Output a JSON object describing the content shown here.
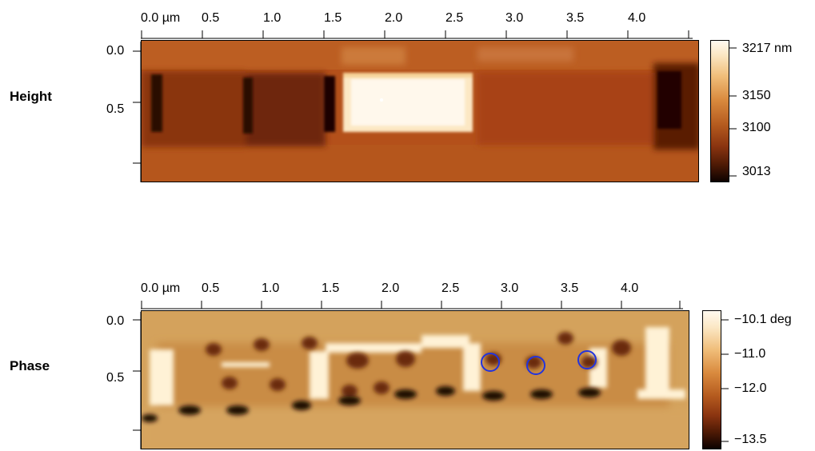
{
  "panels": [
    {
      "label": "Height",
      "x_ticks": [
        "0.0 µm",
        "0.5",
        "1.0",
        "1.5",
        "2.0",
        "2.5",
        "3.0",
        "3.5",
        "4.0"
      ],
      "y_ticks": [
        "0.0",
        "0.5"
      ],
      "colorbar": [
        "3217 nm",
        "3150",
        "3100",
        "3013"
      ]
    },
    {
      "label": "Phase",
      "x_ticks": [
        "0.0 µm",
        "0.5",
        "1.0",
        "1.5",
        "2.0",
        "2.5",
        "3.0",
        "3.5",
        "4.0"
      ],
      "y_ticks": [
        "0.0",
        "0.5"
      ],
      "colorbar": [
        "−10.1 deg",
        "−11.0",
        "−12.0",
        "−13.5"
      ],
      "markers": "blue-circles",
      "marker_count": 3
    }
  ],
  "colors": {
    "afm_dark": "#1a0500",
    "afm_mid": "#9a3a10",
    "afm_light": "#fff8e8",
    "marker": "#2233dd"
  }
}
